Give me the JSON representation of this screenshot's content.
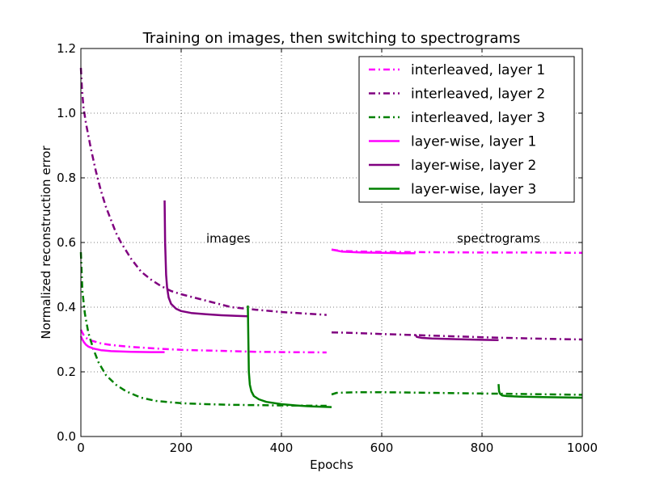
{
  "chart_data": {
    "type": "line",
    "title": "Training  on images, then switching to spectrograms",
    "xlabel": "Epochs",
    "ylabel": "Normalized reconstruction error",
    "xlim": [
      0,
      1000
    ],
    "ylim": [
      0.0,
      1.2
    ],
    "xticks": [
      0,
      200,
      400,
      600,
      800,
      1000
    ],
    "xtick_labels": [
      "0",
      "200",
      "400",
      "600",
      "800",
      "1000"
    ],
    "yticks": [
      0.0,
      0.2,
      0.4,
      0.6,
      0.8,
      1.0,
      1.2
    ],
    "ytick_labels": [
      "0.0",
      "0.2",
      "0.4",
      "0.6",
      "0.8",
      "1.0",
      "1.2"
    ],
    "grid": true,
    "legend_position": "top-right",
    "annotations": [
      {
        "text": "images",
        "x": 250,
        "y": 0.6
      },
      {
        "text": "spectrograms",
        "x": 750,
        "y": 0.6
      }
    ],
    "series": [
      {
        "name": "interleaved, layer 1",
        "color": "#ff00ff",
        "style": "dashdot",
        "segments": [
          [
            [
              0,
              0.33
            ],
            [
              5,
              0.315
            ],
            [
              10,
              0.305
            ],
            [
              20,
              0.297
            ],
            [
              40,
              0.288
            ],
            [
              60,
              0.283
            ],
            [
              100,
              0.277
            ],
            [
              150,
              0.272
            ],
            [
              200,
              0.268
            ],
            [
              250,
              0.266
            ],
            [
              300,
              0.264
            ],
            [
              350,
              0.262
            ],
            [
              400,
              0.261
            ],
            [
              490,
              0.26
            ]
          ],
          [
            [
              500,
              0.578
            ],
            [
              520,
              0.574
            ],
            [
              560,
              0.572
            ],
            [
              600,
              0.571
            ],
            [
              700,
              0.57
            ],
            [
              800,
              0.569
            ],
            [
              900,
              0.569
            ],
            [
              1000,
              0.568
            ]
          ]
        ]
      },
      {
        "name": "interleaved, layer 2",
        "color": "#800080",
        "style": "dashdot",
        "segments": [
          [
            [
              0,
              1.14
            ],
            [
              2,
              1.08
            ],
            [
              5,
              1.02
            ],
            [
              10,
              0.97
            ],
            [
              20,
              0.89
            ],
            [
              30,
              0.82
            ],
            [
              40,
              0.76
            ],
            [
              50,
              0.71
            ],
            [
              60,
              0.67
            ],
            [
              70,
              0.63
            ],
            [
              80,
              0.6
            ],
            [
              100,
              0.55
            ],
            [
              120,
              0.51
            ],
            [
              140,
              0.485
            ],
            [
              160,
              0.465
            ],
            [
              180,
              0.45
            ],
            [
              200,
              0.44
            ],
            [
              250,
              0.42
            ],
            [
              300,
              0.4
            ],
            [
              350,
              0.392
            ],
            [
              400,
              0.385
            ],
            [
              450,
              0.38
            ],
            [
              490,
              0.376
            ]
          ],
          [
            [
              500,
              0.322
            ],
            [
              550,
              0.32
            ],
            [
              600,
              0.317
            ],
            [
              700,
              0.312
            ],
            [
              800,
              0.307
            ],
            [
              900,
              0.303
            ],
            [
              1000,
              0.3
            ]
          ]
        ]
      },
      {
        "name": "interleaved, layer 3",
        "color": "#008000",
        "style": "dashdot",
        "segments": [
          [
            [
              0,
              0.57
            ],
            [
              3,
              0.45
            ],
            [
              8,
              0.38
            ],
            [
              15,
              0.32
            ],
            [
              25,
              0.27
            ],
            [
              35,
              0.23
            ],
            [
              50,
              0.19
            ],
            [
              70,
              0.16
            ],
            [
              90,
              0.14
            ],
            [
              120,
              0.12
            ],
            [
              150,
              0.11
            ],
            [
              200,
              0.103
            ],
            [
              250,
              0.1
            ],
            [
              300,
              0.098
            ],
            [
              350,
              0.097
            ],
            [
              400,
              0.096
            ],
            [
              490,
              0.095
            ]
          ],
          [
            [
              500,
              0.13
            ],
            [
              510,
              0.135
            ],
            [
              550,
              0.137
            ],
            [
              600,
              0.137
            ],
            [
              700,
              0.135
            ],
            [
              800,
              0.133
            ],
            [
              900,
              0.131
            ],
            [
              1000,
              0.129
            ]
          ]
        ]
      },
      {
        "name": "layer-wise, layer 1",
        "color": "#ff00ff",
        "style": "solid",
        "segments": [
          [
            [
              0,
              0.31
            ],
            [
              3,
              0.3
            ],
            [
              6,
              0.292
            ],
            [
              10,
              0.284
            ],
            [
              15,
              0.278
            ],
            [
              25,
              0.272
            ],
            [
              40,
              0.267
            ],
            [
              60,
              0.264
            ],
            [
              100,
              0.262
            ],
            [
              140,
              0.261
            ],
            [
              167,
              0.261
            ]
          ],
          [
            [
              500,
              0.578
            ],
            [
              520,
              0.572
            ],
            [
              560,
              0.569
            ],
            [
              600,
              0.568
            ],
            [
              640,
              0.567
            ],
            [
              667,
              0.567
            ]
          ]
        ]
      },
      {
        "name": "layer-wise, layer 2",
        "color": "#800080",
        "style": "solid",
        "segments": [
          [
            [
              167,
              0.73
            ],
            [
              168,
              0.6
            ],
            [
              170,
              0.5
            ],
            [
              172,
              0.46
            ],
            [
              175,
              0.43
            ],
            [
              180,
              0.41
            ],
            [
              190,
              0.395
            ],
            [
              200,
              0.388
            ],
            [
              220,
              0.382
            ],
            [
              250,
              0.378
            ],
            [
              280,
              0.375
            ],
            [
              310,
              0.373
            ],
            [
              333,
              0.372
            ]
          ],
          [
            [
              667,
              0.315
            ],
            [
              670,
              0.308
            ],
            [
              680,
              0.305
            ],
            [
              700,
              0.303
            ],
            [
              750,
              0.301
            ],
            [
              800,
              0.299
            ],
            [
              833,
              0.298
            ]
          ]
        ]
      },
      {
        "name": "layer-wise, layer 3",
        "color": "#008000",
        "style": "solid",
        "segments": [
          [
            [
              333,
              0.405
            ],
            [
              334,
              0.3
            ],
            [
              335,
              0.2
            ],
            [
              337,
              0.16
            ],
            [
              340,
              0.14
            ],
            [
              345,
              0.125
            ],
            [
              355,
              0.115
            ],
            [
              370,
              0.107
            ],
            [
              400,
              0.1
            ],
            [
              430,
              0.096
            ],
            [
              460,
              0.093
            ],
            [
              500,
              0.091
            ]
          ],
          [
            [
              833,
              0.162
            ],
            [
              834,
              0.14
            ],
            [
              836,
              0.132
            ],
            [
              840,
              0.127
            ],
            [
              850,
              0.125
            ],
            [
              880,
              0.123
            ],
            [
              920,
              0.122
            ],
            [
              960,
              0.121
            ],
            [
              1000,
              0.12
            ]
          ]
        ]
      }
    ]
  }
}
